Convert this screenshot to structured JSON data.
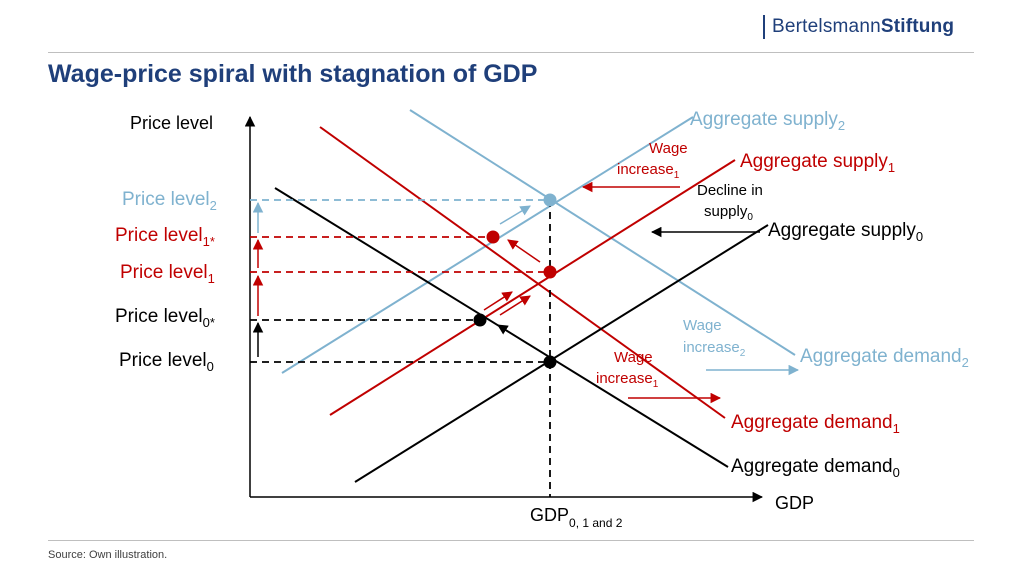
{
  "header": {
    "logo_regular": "Bertelsmann",
    "logo_bold": "Stiftung",
    "title": "Wage-price spiral with stagnation of GDP"
  },
  "axes": {
    "y_label": "Price level",
    "x_label": "GDP",
    "x_tick_main": "GDP",
    "x_tick_sub": "0, 1 and 2"
  },
  "price_levels": {
    "pl2": {
      "main": "Price level",
      "sub": "2"
    },
    "pl1star": {
      "main": "Price level",
      "sub": "1*"
    },
    "pl1": {
      "main": "Price level",
      "sub": "1"
    },
    "pl0star": {
      "main": "Price level",
      "sub": "0*"
    },
    "pl0": {
      "main": "Price level",
      "sub": "0"
    }
  },
  "curves": {
    "as2": {
      "main": "Aggregate supply",
      "sub": "2"
    },
    "as1": {
      "main": "Aggregate supply",
      "sub": "1"
    },
    "as0": {
      "main": "Aggregate supply",
      "sub": "0"
    },
    "ad2": {
      "main": "Aggregate demand",
      "sub": "2"
    },
    "ad1": {
      "main": "Aggregate demand",
      "sub": "1"
    },
    "ad0": {
      "main": "Aggregate demand",
      "sub": "0"
    }
  },
  "annotations": {
    "wage_increase_top": {
      "line1": "Wage",
      "line2": "increase",
      "sub": "1"
    },
    "decline_supply": {
      "line1": "Decline in",
      "line2": "supply",
      "sub": "0"
    },
    "wage_increase_2": {
      "line1": "Wage",
      "line2": "increase",
      "sub": "2"
    },
    "wage_increase_1": {
      "line1": "Wage",
      "line2": "increase",
      "sub": "1"
    }
  },
  "colors": {
    "black": "#000000",
    "red": "#c00000",
    "blue": "#7fb2cf",
    "title": "#1f3f7a"
  },
  "footer": {
    "source": "Source: Own illustration."
  }
}
